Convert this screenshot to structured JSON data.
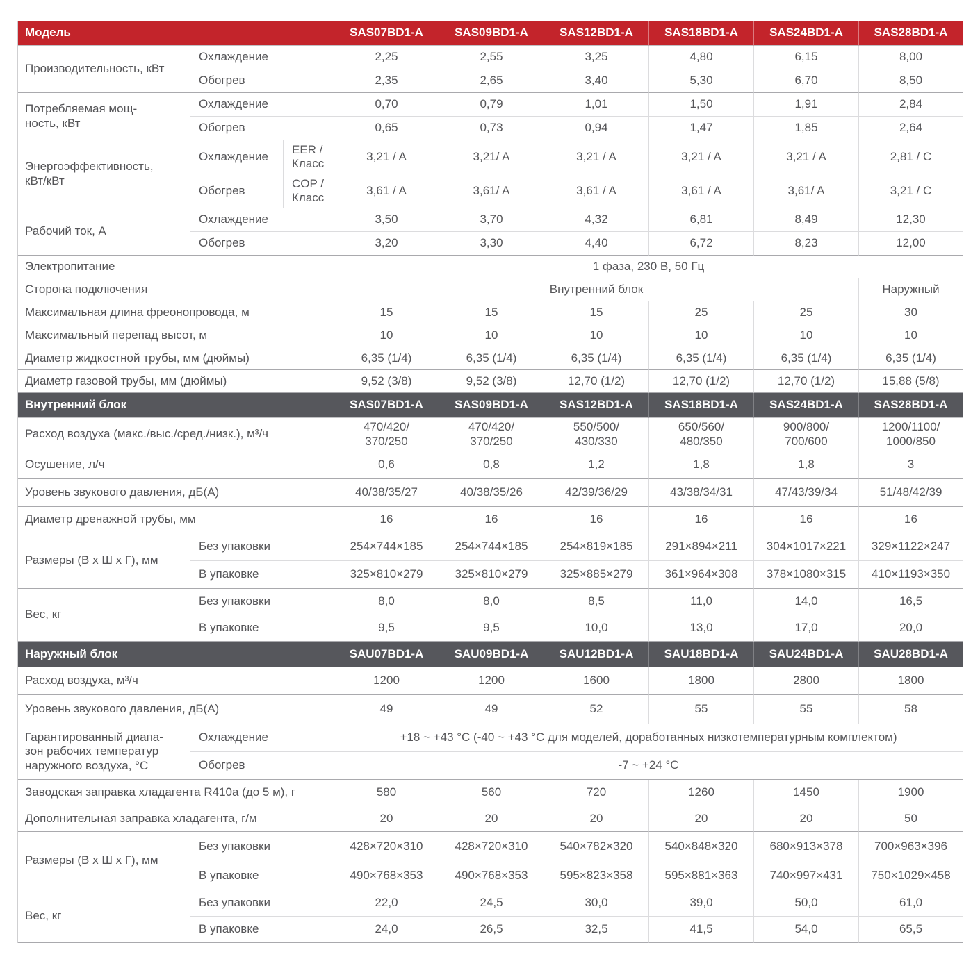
{
  "colors": {
    "header_bg": "#c3242b",
    "section_bg": "#56575c",
    "header_text": "#ffffff",
    "body_text": "#565659",
    "border_light": "#dcdcde",
    "border_dark": "#a9a9ad"
  },
  "header": {
    "model_label": "Модель",
    "models": [
      "SAS07BD1-A",
      "SAS09BD1-A",
      "SAS12BD1-A",
      "SAS18BD1-A",
      "SAS24BD1-A",
      "SAS28BD1-A"
    ]
  },
  "rows": {
    "capacity": {
      "label": "Производительность, кВт",
      "cooling_label": "Охлаждение",
      "heating_label": "Обогрев",
      "cooling": [
        "2,25",
        "2,55",
        "3,25",
        "4,80",
        "6,15",
        "8,00"
      ],
      "heating": [
        "2,35",
        "2,65",
        "3,40",
        "5,30",
        "6,70",
        "8,50"
      ]
    },
    "power": {
      "label": "Потребляемая мощ-\nность, кВт",
      "cooling_label": "Охлаждение",
      "heating_label": "Обогрев",
      "cooling": [
        "0,70",
        "0,79",
        "1,01",
        "1,50",
        "1,91",
        "2,84"
      ],
      "heating": [
        "0,65",
        "0,73",
        "0,94",
        "1,47",
        "1,85",
        "2,64"
      ]
    },
    "efficiency": {
      "label": "Энергоэффективность,\nкВт/кВт",
      "cooling_label": "Охлаждение",
      "heating_label": "Обогрев",
      "eer_label": "EER /\nКласс",
      "cop_label": "COP /\nКласс",
      "eer": [
        "3,21 / A",
        "3,21/ A",
        "3,21 / A",
        "3,21 / A",
        "3,21 / A",
        "2,81 / C"
      ],
      "cop": [
        "3,61 / A",
        "3,61/ A",
        "3,61 / A",
        "3,61 / A",
        "3,61/ A",
        "3,21 / C"
      ]
    },
    "current": {
      "label": "Рабочий ток, А",
      "cooling_label": "Охлаждение",
      "heating_label": "Обогрев",
      "cooling": [
        "3,50",
        "3,70",
        "4,32",
        "6,81",
        "8,49",
        "12,30"
      ],
      "heating": [
        "3,20",
        "3,30",
        "4,40",
        "6,72",
        "8,23",
        "12,00"
      ]
    },
    "power_supply": {
      "label": "Электропитание",
      "value": "1 фаза, 230 В, 50 Гц"
    },
    "connection": {
      "label": "Сторона подключения",
      "indoor_value": "Внутренний блок",
      "outdoor_value": "Наружный"
    },
    "pipe_length": {
      "label": "Максимальная длина фреонопровода, м",
      "values": [
        "15",
        "15",
        "15",
        "25",
        "25",
        "30"
      ]
    },
    "height_diff": {
      "label": "Максимальный перепад высот, м",
      "values": [
        "10",
        "10",
        "10",
        "10",
        "10",
        "10"
      ]
    },
    "liquid_pipe": {
      "label": "Диаметр жидкостной трубы, мм (дюймы)",
      "values": [
        "6,35 (1/4)",
        "6,35 (1/4)",
        "6,35 (1/4)",
        "6,35 (1/4)",
        "6,35 (1/4)",
        "6,35 (1/4)"
      ]
    },
    "gas_pipe": {
      "label": "Диаметр газовой трубы, мм (дюймы)",
      "values": [
        "9,52 (3/8)",
        "9,52 (3/8)",
        "12,70 (1/2)",
        "12,70 (1/2)",
        "12,70 (1/2)",
        "15,88 (5/8)"
      ]
    }
  },
  "indoor_section": {
    "label": "Внутренний блок",
    "models": [
      "SAS07BD1-A",
      "SAS09BD1-A",
      "SAS12BD1-A",
      "SAS18BD1-A",
      "SAS24BD1-A",
      "SAS28BD1-A"
    ]
  },
  "indoor": {
    "airflow": {
      "label": "Расход воздуха (макс./выс./сред./низк.), м³/ч",
      "values": [
        "470/420/\n370/250",
        "470/420/\n370/250",
        "550/500/\n430/330",
        "650/560/\n480/350",
        "900/800/\n700/600",
        "1200/1100/\n1000/850"
      ]
    },
    "dehumidification": {
      "label": "Осушение, л/ч",
      "values": [
        "0,6",
        "0,8",
        "1,2",
        "1,8",
        "1,8",
        "3"
      ]
    },
    "sound": {
      "label": "Уровень звукового давления, дБ(А)",
      "values": [
        "40/38/35/27",
        "40/38/35/26",
        "42/39/36/29",
        "43/38/34/31",
        "47/43/39/34",
        "51/48/42/39"
      ]
    },
    "drain_pipe": {
      "label": "Диаметр дренажной трубы, мм",
      "values": [
        "16",
        "16",
        "16",
        "16",
        "16",
        "16"
      ]
    },
    "dimensions": {
      "label": "Размеры (В х Ш х Г), мм",
      "unpacked_label": "Без упаковки",
      "packed_label": "В упаковке",
      "unpacked": [
        "254×744×185",
        "254×744×185",
        "254×819×185",
        "291×894×211",
        "304×1017×221",
        "329×1122×247"
      ],
      "packed": [
        "325×810×279",
        "325×810×279",
        "325×885×279",
        "361×964×308",
        "378×1080×315",
        "410×1193×350"
      ]
    },
    "weight": {
      "label": "Вес, кг",
      "unpacked_label": "Без упаковки",
      "packed_label": "В упаковке",
      "unpacked": [
        "8,0",
        "8,0",
        "8,5",
        "11,0",
        "14,0",
        "16,5"
      ],
      "packed": [
        "9,5",
        "9,5",
        "10,0",
        "13,0",
        "17,0",
        "20,0"
      ]
    }
  },
  "outdoor_section": {
    "label": "Наружный блок",
    "models": [
      "SAU07BD1-A",
      "SAU09BD1-A",
      "SAU12BD1-A",
      "SAU18BD1-A",
      "SAU24BD1-A",
      "SAU28BD1-A"
    ]
  },
  "outdoor": {
    "airflow": {
      "label": "Расход воздуха, м³/ч",
      "values": [
        "1200",
        "1200",
        "1600",
        "1800",
        "2800",
        "1800"
      ]
    },
    "sound": {
      "label": "Уровень звукового давления, дБ(А)",
      "values": [
        "49",
        "49",
        "52",
        "55",
        "55",
        "58"
      ]
    },
    "temp_range": {
      "label": "Гарантированный диапа-\nзон рабочих температур\nнаружного воздуха, °С",
      "cooling_label": "Охлаждение",
      "heating_label": "Обогрев",
      "cooling_value": "+18 ~ +43 °С  (-40 ~ +43 °С для моделей, доработанных низкотемпературным комплектом)",
      "heating_value": "-7 ~ +24 °С"
    },
    "factory_charge": {
      "label": "Заводская заправка хладагента R410a (до 5 м), г",
      "values": [
        "580",
        "560",
        "720",
        "1260",
        "1450",
        "1900"
      ]
    },
    "additional_charge": {
      "label": "Дополнительная заправка хладагента, г/м",
      "values": [
        "20",
        "20",
        "20",
        "20",
        "20",
        "50"
      ]
    },
    "dimensions": {
      "label": "Размеры (В х Ш х Г), мм",
      "unpacked_label": "Без упаковки",
      "packed_label": "В упаковке",
      "unpacked": [
        "428×720×310",
        "428×720×310",
        "540×782×320",
        "540×848×320",
        "680×913×378",
        "700×963×396"
      ],
      "packed": [
        "490×768×353",
        "490×768×353",
        "595×823×358",
        "595×881×363",
        "740×997×431",
        "750×1029×458"
      ]
    },
    "weight": {
      "label": "Вес, кг",
      "unpacked_label": "Без упаковки",
      "packed_label": "В упаковке",
      "unpacked": [
        "22,0",
        "24,5",
        "30,0",
        "39,0",
        "50,0",
        "61,0"
      ],
      "packed": [
        "24,0",
        "26,5",
        "32,5",
        "41,5",
        "54,0",
        "65,5"
      ]
    }
  }
}
